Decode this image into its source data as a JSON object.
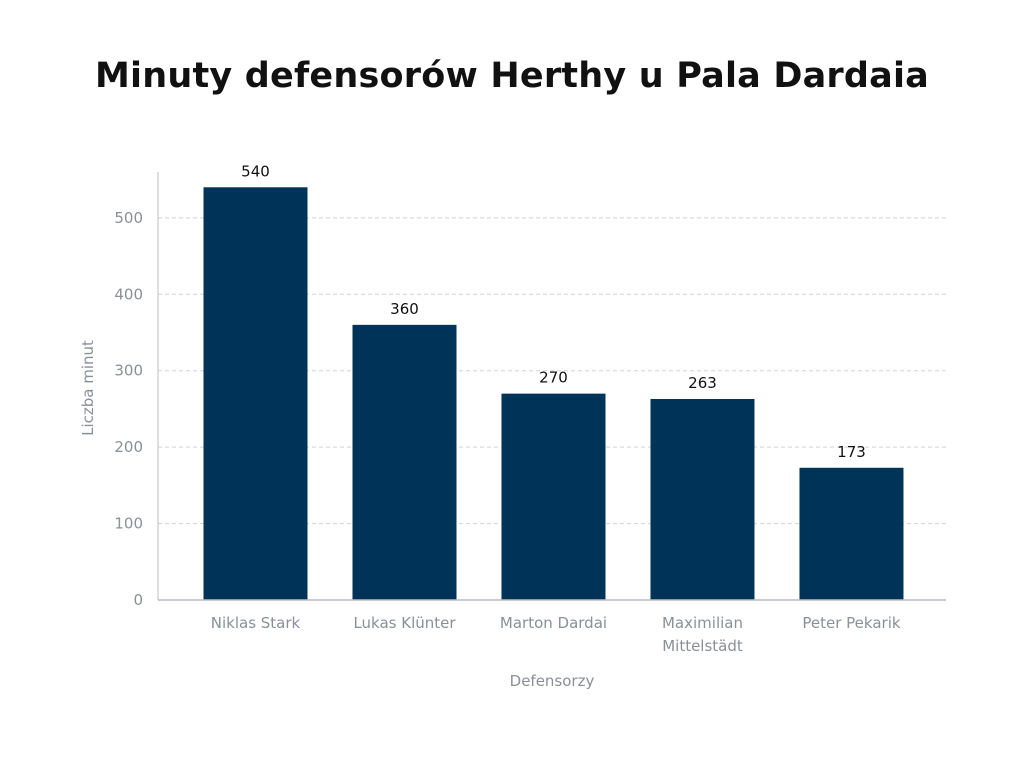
{
  "chart_data": {
    "type": "bar",
    "title": "Minuty defensorów Herthy u Pala Dardaia",
    "xlabel": "Defensorzy",
    "ylabel": "Liczba minut",
    "categories": [
      [
        "Niklas Stark"
      ],
      [
        "Lukas Klünter"
      ],
      [
        "Marton Dardai"
      ],
      [
        "Maximilian",
        "Mittelstädt"
      ],
      [
        "Peter Pekarik"
      ]
    ],
    "values": [
      540,
      360,
      270,
      263,
      173
    ],
    "ylim": [
      0,
      560
    ],
    "yticks": [
      0,
      100,
      200,
      300,
      400,
      500
    ],
    "grid": true,
    "bar_color": "#003358",
    "grid_color": "#cfd3d8"
  }
}
